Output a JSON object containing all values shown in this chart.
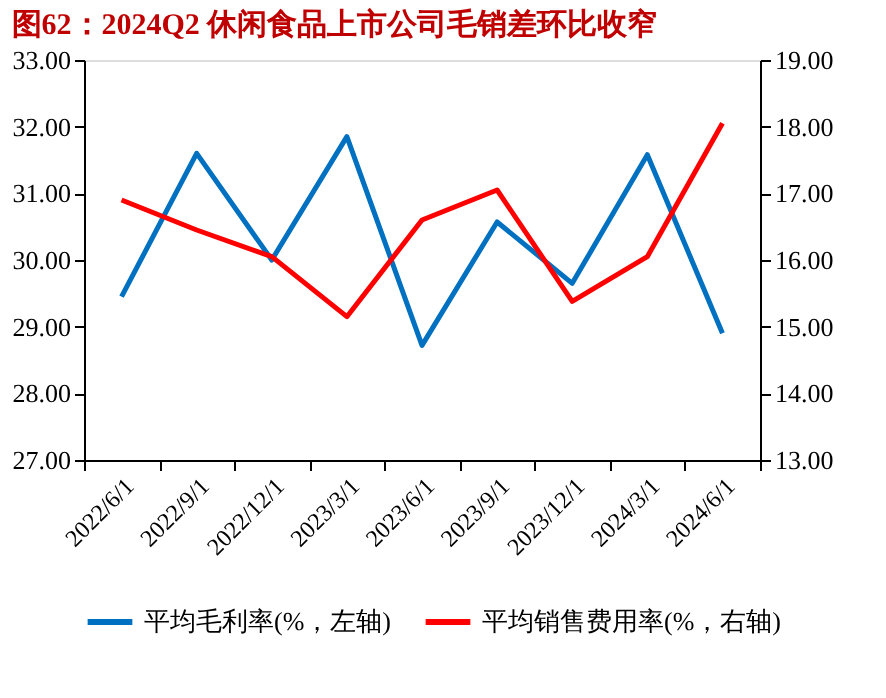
{
  "chart_data": {
    "type": "line",
    "title": "图62：2024Q2 休闲食品上市公司毛销差环比收窄",
    "categories": [
      "2022/6/1",
      "2022/9/1",
      "2022/12/1",
      "2023/3/1",
      "2023/6/1",
      "2023/9/1",
      "2023/12/1",
      "2024/3/1",
      "2024/6/1"
    ],
    "series": [
      {
        "name": "平均毛利率(%，左轴)",
        "color": "#0070c0",
        "values": [
          29.45,
          31.6,
          30.0,
          31.85,
          28.72,
          30.57,
          29.65,
          31.58,
          28.9
        ]
      },
      {
        "name": "平均销售费用率(%，右轴)",
        "color": "#ff0000",
        "axis": "y2",
        "values": [
          16.9,
          16.45,
          16.05,
          15.15,
          16.6,
          17.05,
          15.38,
          16.05,
          18.05
        ]
      }
    ],
    "ylim": [
      27,
      33
    ],
    "yticks": [
      {
        "value": 27,
        "label": "27.00"
      },
      {
        "value": 28,
        "label": "28.00"
      },
      {
        "value": 29,
        "label": "29.00"
      },
      {
        "value": 30,
        "label": "30.00"
      },
      {
        "value": 31,
        "label": "31.00"
      },
      {
        "value": 32,
        "label": "32.00"
      },
      {
        "value": 33,
        "label": "33.00"
      }
    ],
    "y2lim": [
      13,
      19
    ],
    "y2ticks": [
      {
        "value": 13,
        "label": "13.00"
      },
      {
        "value": 14,
        "label": "14.00"
      },
      {
        "value": 15,
        "label": "15.00"
      },
      {
        "value": 16,
        "label": "16.00"
      },
      {
        "value": 17,
        "label": "17.00"
      },
      {
        "value": 18,
        "label": "18.00"
      },
      {
        "value": 19,
        "label": "19.00"
      }
    ],
    "grid": false,
    "legend": "bottom",
    "marker": "none",
    "line_style": "solid"
  }
}
